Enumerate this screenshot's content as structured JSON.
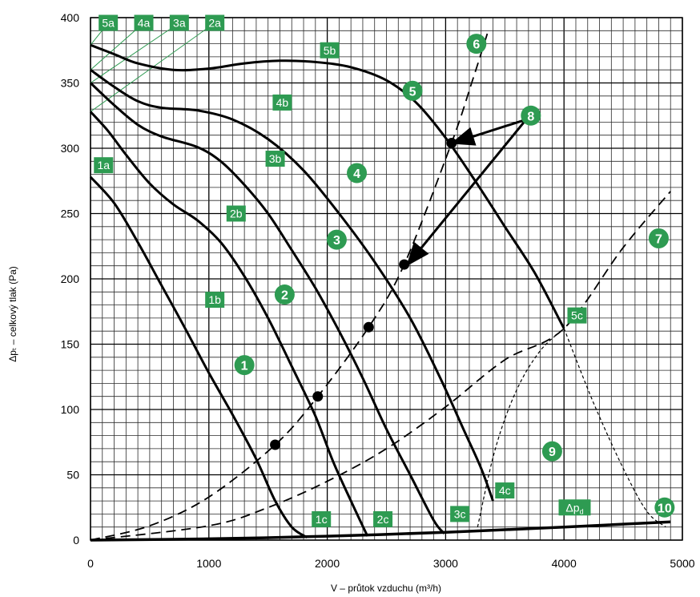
{
  "chart_data": {
    "type": "line",
    "title": "",
    "xlabel": "V – průtok vzduchu (m³/h)",
    "ylabel": "Δpₜ – celkový tlak (Pa)",
    "xlim": [
      0,
      5000
    ],
    "ylim": [
      0,
      400
    ],
    "x_ticks": [
      "0",
      "1000",
      "2000",
      "3000",
      "4000",
      "5000"
    ],
    "y_ticks": [
      "0",
      "50",
      "100",
      "150",
      "200",
      "250",
      "300",
      "350",
      "400"
    ],
    "grid": true,
    "colors": {
      "curve": "#000000",
      "label_bg": "#2e9b52",
      "label_text": "#ffffff"
    },
    "fan_curves": [
      {
        "name": "1",
        "points": [
          [
            0,
            278
          ],
          [
            200,
            258
          ],
          [
            400,
            228
          ],
          [
            600,
            195
          ],
          [
            800,
            162
          ],
          [
            1000,
            128
          ],
          [
            1200,
            96
          ],
          [
            1400,
            62
          ],
          [
            1560,
            30
          ],
          [
            1700,
            10
          ],
          [
            1830,
            2
          ]
        ]
      },
      {
        "name": "2",
        "points": [
          [
            0,
            328
          ],
          [
            150,
            313
          ],
          [
            300,
            295
          ],
          [
            500,
            273
          ],
          [
            700,
            257
          ],
          [
            900,
            245
          ],
          [
            1100,
            228
          ],
          [
            1300,
            202
          ],
          [
            1500,
            170
          ],
          [
            1700,
            133
          ],
          [
            1900,
            95
          ],
          [
            2050,
            60
          ],
          [
            2200,
            30
          ],
          [
            2340,
            3
          ]
        ]
      },
      {
        "name": "3",
        "points": [
          [
            0,
            350
          ],
          [
            200,
            333
          ],
          [
            400,
            318
          ],
          [
            600,
            309
          ],
          [
            900,
            301
          ],
          [
            1100,
            290
          ],
          [
            1300,
            272
          ],
          [
            1500,
            250
          ],
          [
            1700,
            222
          ],
          [
            1900,
            193
          ],
          [
            2100,
            160
          ],
          [
            2300,
            124
          ],
          [
            2500,
            85
          ],
          [
            2700,
            50
          ],
          [
            2900,
            15
          ],
          [
            2990,
            5
          ]
        ]
      },
      {
        "name": "4",
        "points": [
          [
            0,
            360
          ],
          [
            200,
            347
          ],
          [
            400,
            336
          ],
          [
            600,
            331
          ],
          [
            900,
            329
          ],
          [
            1200,
            322
          ],
          [
            1500,
            307
          ],
          [
            1800,
            283
          ],
          [
            2100,
            250
          ],
          [
            2400,
            213
          ],
          [
            2700,
            170
          ],
          [
            2950,
            125
          ],
          [
            3150,
            85
          ],
          [
            3300,
            55
          ],
          [
            3400,
            30
          ]
        ]
      },
      {
        "name": "5",
        "points": [
          [
            0,
            379
          ],
          [
            200,
            372
          ],
          [
            400,
            365
          ],
          [
            700,
            360
          ],
          [
            1000,
            361
          ],
          [
            1300,
            365
          ],
          [
            1600,
            367
          ],
          [
            1900,
            366
          ],
          [
            2200,
            362
          ],
          [
            2500,
            352
          ],
          [
            2750,
            335
          ],
          [
            3000,
            308
          ],
          [
            3250,
            275
          ],
          [
            3500,
            240
          ],
          [
            3750,
            205
          ],
          [
            4000,
            162
          ]
        ]
      }
    ],
    "system_curves": [
      {
        "name": "6",
        "points": [
          [
            0,
            0
          ],
          [
            500,
            11
          ],
          [
            1000,
            33
          ],
          [
            1560,
            73
          ],
          [
            1920,
            110
          ],
          [
            2350,
            163
          ],
          [
            2650,
            211
          ],
          [
            3050,
            304
          ],
          [
            3220,
            350
          ],
          [
            3360,
            390
          ]
        ]
      },
      {
        "name": "7",
        "points": [
          [
            0,
            0
          ],
          [
            1000,
            11
          ],
          [
            1500,
            25
          ],
          [
            2000,
            45
          ],
          [
            2500,
            70
          ],
          [
            3000,
            102
          ],
          [
            3500,
            138
          ],
          [
            4000,
            162
          ],
          [
            4500,
            224
          ],
          [
            4900,
            267
          ]
        ]
      }
    ],
    "dynamic_pressure_curve": {
      "name": "Δp_d",
      "points": [
        [
          0,
          0
        ],
        [
          1000,
          1
        ],
        [
          2000,
          3
        ],
        [
          3000,
          6
        ],
        [
          4000,
          10
        ],
        [
          4900,
          14
        ]
      ]
    },
    "operating_points": [
      [
        1560,
        73
      ],
      [
        1920,
        110
      ],
      [
        2350,
        163
      ],
      [
        2650,
        211
      ],
      [
        3050,
        304
      ]
    ],
    "arrows": [
      {
        "from": [
          3680,
          322
        ],
        "to": [
          3060,
          304
        ]
      },
      {
        "from": [
          3680,
          322
        ],
        "to": [
          2680,
          211
        ]
      }
    ],
    "limit_lines": [
      {
        "name": "9-left",
        "points": [
          [
            3270,
            10
          ],
          [
            3420,
            70
          ],
          [
            3600,
            115
          ],
          [
            3800,
            145
          ],
          [
            4000,
            162
          ]
        ]
      },
      {
        "name": "10",
        "points": [
          [
            4000,
            162
          ],
          [
            4250,
            105
          ],
          [
            4500,
            55
          ],
          [
            4700,
            22
          ],
          [
            4860,
            10
          ]
        ]
      }
    ],
    "label_tags": [
      {
        "text": "5a",
        "x": 150,
        "y": 396
      },
      {
        "text": "4a",
        "x": 450,
        "y": 396
      },
      {
        "text": "3a",
        "x": 750,
        "y": 396
      },
      {
        "text": "2a",
        "x": 1050,
        "y": 396
      },
      {
        "text": "5b",
        "x": 2020,
        "y": 375
      },
      {
        "text": "4b",
        "x": 1620,
        "y": 335
      },
      {
        "text": "3b",
        "x": 1560,
        "y": 292
      },
      {
        "text": "1a",
        "x": 110,
        "y": 287
      },
      {
        "text": "2b",
        "x": 1230,
        "y": 250
      },
      {
        "text": "1b",
        "x": 1050,
        "y": 184
      },
      {
        "text": "5c",
        "x": 4110,
        "y": 172
      },
      {
        "text": "4c",
        "x": 3500,
        "y": 38
      },
      {
        "text": "1c",
        "x": 1950,
        "y": 16
      },
      {
        "text": "2c",
        "x": 2470,
        "y": 16
      },
      {
        "text": "3c",
        "x": 3120,
        "y": 20
      },
      {
        "text": "Δp",
        "sub": "d",
        "x": 4090,
        "y": 25
      }
    ],
    "number_markers": [
      {
        "text": "1",
        "x": 1300,
        "y": 134
      },
      {
        "text": "2",
        "x": 1640,
        "y": 188
      },
      {
        "text": "3",
        "x": 2080,
        "y": 230
      },
      {
        "text": "4",
        "x": 2250,
        "y": 281
      },
      {
        "text": "5",
        "x": 2720,
        "y": 344
      },
      {
        "text": "6",
        "x": 3260,
        "y": 380
      },
      {
        "text": "7",
        "x": 4800,
        "y": 231
      },
      {
        "text": "8",
        "x": 3720,
        "y": 325
      },
      {
        "text": "9",
        "x": 3900,
        "y": 68
      },
      {
        "text": "10",
        "x": 4850,
        "y": 25
      }
    ],
    "green_guide_lines": [
      {
        "from": [
          0,
          379
        ],
        "to": [
          150,
          396
        ]
      },
      {
        "from": [
          0,
          360
        ],
        "to": [
          450,
          396
        ]
      },
      {
        "from": [
          0,
          350
        ],
        "to": [
          750,
          396
        ]
      },
      {
        "from": [
          0,
          328
        ],
        "to": [
          1050,
          396
        ]
      }
    ]
  }
}
